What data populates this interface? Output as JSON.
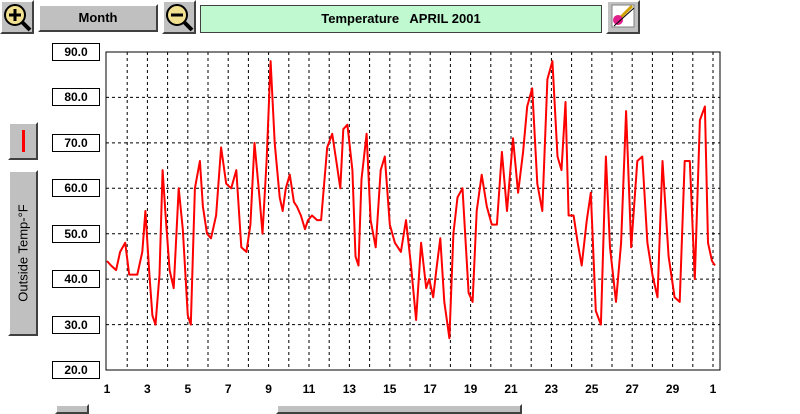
{
  "toolbar": {
    "zoom_in_icon": "zoom-in-magnifier-icon",
    "period_label": "Month",
    "zoom_out_icon": "zoom-out-magnifier-icon",
    "paint_icon": "paint-brush-icon"
  },
  "chart_title": "Temperature   APRIL 2001",
  "side_panel": {
    "series_color": "#ff0000",
    "series_label": "Outside Temp-°F"
  },
  "chart_data": {
    "type": "line",
    "title": "Temperature   APRIL 2001",
    "ylabel": "Outside Temp-°F",
    "ylim": [
      20,
      90
    ],
    "y_ticks": [
      "90.0",
      "80.0",
      "70.0",
      "60.0",
      "50.0",
      "40.0",
      "30.0",
      "20.0"
    ],
    "x_ticks": [
      "1",
      "3",
      "5",
      "7",
      "9",
      "11",
      "13",
      "15",
      "17",
      "19",
      "21",
      "23",
      "25",
      "27",
      "29",
      "1"
    ],
    "grid": true,
    "series": [
      {
        "color": "#ff0000",
        "x": [
          1.0,
          1.2,
          1.45,
          1.65,
          1.9,
          2.1,
          2.5,
          2.75,
          2.9,
          3.1,
          3.25,
          3.4,
          3.6,
          3.75,
          3.9,
          4.1,
          4.3,
          4.55,
          4.75,
          5.0,
          5.15,
          5.35,
          5.6,
          5.75,
          5.95,
          6.15,
          6.4,
          6.65,
          6.9,
          7.15,
          7.4,
          7.65,
          7.9,
          8.1,
          8.3,
          8.55,
          8.7,
          8.9,
          9.1,
          9.3,
          9.55,
          9.7,
          9.85,
          10.05,
          10.25,
          10.4,
          10.6,
          10.8,
          10.95,
          11.15,
          11.4,
          11.6,
          11.9,
          12.15,
          12.35,
          12.55,
          12.7,
          12.9,
          13.15,
          13.3,
          13.45,
          13.6,
          13.85,
          14.05,
          14.3,
          14.55,
          14.75,
          15.0,
          15.25,
          15.55,
          15.8,
          16.05,
          16.3,
          16.55,
          16.8,
          16.95,
          17.15,
          17.3,
          17.5,
          17.7,
          17.95,
          18.15,
          18.35,
          18.6,
          18.9,
          19.1,
          19.3,
          19.55,
          19.8,
          20.05,
          20.3,
          20.55,
          20.8,
          21.1,
          21.35,
          21.6,
          21.8,
          22.05,
          22.3,
          22.55,
          22.8,
          23.05,
          23.3,
          23.5,
          23.7,
          23.85,
          24.1,
          24.3,
          24.5,
          24.75,
          24.95,
          25.2,
          25.45,
          25.7,
          25.9,
          26.2,
          26.45,
          26.7,
          26.95,
          27.25,
          27.5,
          27.75,
          28.0,
          28.25,
          28.5,
          28.8,
          29.1,
          29.35,
          29.6,
          29.85,
          30.1,
          30.35,
          30.6,
          30.75,
          30.95,
          31.1
        ],
        "y": [
          44,
          43,
          42,
          46,
          48,
          41,
          41,
          46,
          55,
          41,
          32,
          30,
          41,
          64,
          54,
          42,
          38,
          60,
          51,
          32,
          30,
          60,
          66,
          56,
          50,
          49,
          54,
          69,
          61,
          60,
          64,
          47,
          46,
          52,
          70,
          58,
          50,
          66,
          88,
          70,
          58,
          55,
          60,
          63,
          57,
          56,
          54,
          51,
          53,
          54,
          53,
          53,
          69,
          72,
          66,
          60,
          73,
          74,
          64,
          45,
          43,
          62,
          72,
          53,
          47,
          64,
          67,
          52,
          48,
          46,
          53,
          43,
          31,
          48,
          38,
          40,
          36,
          42,
          49,
          35,
          27,
          50,
          58,
          60,
          37,
          35,
          55,
          63,
          56,
          52,
          52,
          68,
          55,
          71,
          59,
          68,
          78,
          82,
          61,
          55,
          84,
          88,
          67,
          64,
          79,
          54,
          54,
          48,
          43,
          53,
          59,
          33,
          30,
          67,
          47,
          35,
          48,
          77,
          47,
          66,
          67,
          48,
          41,
          36,
          66,
          45,
          36,
          35,
          66,
          66,
          40,
          75,
          78,
          48,
          44,
          43
        ]
      }
    ]
  }
}
